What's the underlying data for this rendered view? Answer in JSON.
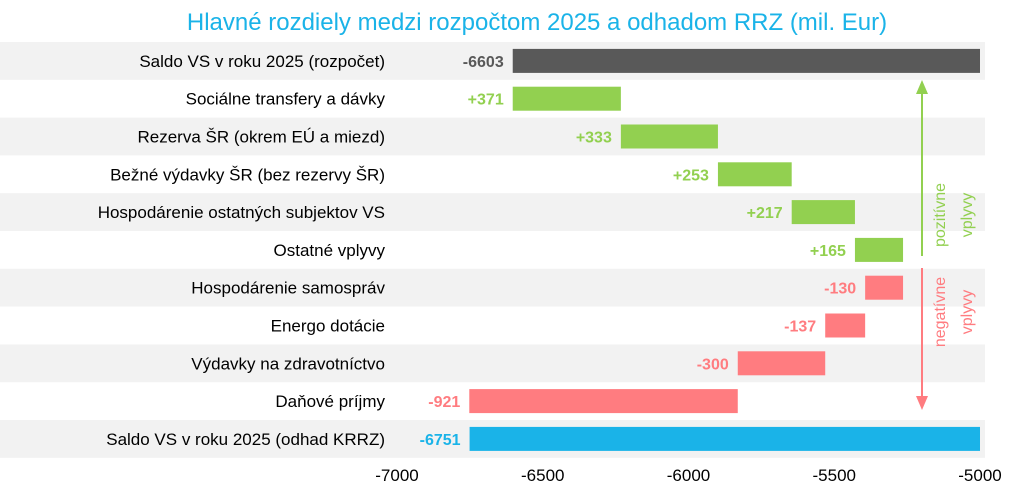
{
  "chart_data": {
    "type": "bar",
    "subtype": "waterfall-horizontal",
    "title": "Hlavné rozdiely medzi rozpočtom 2025 a odhadom RRZ (mil. Eur)",
    "categories": [
      "Saldo VS v roku 2025 (rozpočet)",
      "Sociálne transfery a dávky",
      "Rezerva ŠR (okrem EÚ a miezd)",
      "Bežné výdavky ŠR (bez rezervy ŠR)",
      "Hospodárenie ostatných subjektov VS",
      "Ostatné vplyvy",
      "Hospodárenie samospráv",
      "Energo dotácie",
      "Výdavky na zdravotníctvo",
      "Daňové príjmy",
      "Saldo VS v roku 2025 (odhad KRRZ)"
    ],
    "values": [
      -6603,
      371,
      333,
      253,
      217,
      165,
      -130,
      -137,
      -300,
      -921,
      -6751
    ],
    "value_labels": [
      "-6603",
      "+371",
      "+333",
      "+253",
      "+217",
      "+165",
      "-130",
      "-137",
      "-300",
      "-921",
      "-6751"
    ],
    "bar_kinds": [
      "total",
      "increase",
      "increase",
      "increase",
      "increase",
      "increase",
      "decrease",
      "decrease",
      "decrease",
      "decrease",
      "total"
    ],
    "xlim": [
      -7000,
      -5000
    ],
    "xticks": [
      "-7000",
      "-6500",
      "-6000",
      "-5500",
      "-5000"
    ],
    "xtick_values": [
      -7000,
      -6500,
      -6000,
      -5500,
      -5000
    ],
    "annotations": {
      "positive_line1": "pozitívne",
      "positive_line2": "vplyvy",
      "negative_line1": "negatívne",
      "negative_line2": "vplyvy"
    },
    "colors": {
      "start_total": "#595959",
      "end_total": "#1ab3e8",
      "increase": "#92d050",
      "decrease": "#ff7c80",
      "title": "#1ab3e8",
      "stripe": "#f2f2f2"
    }
  }
}
